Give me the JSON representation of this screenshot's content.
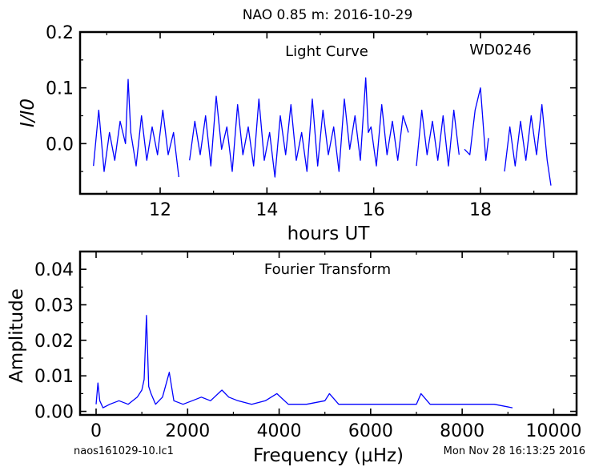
{
  "header": {
    "title": "NAO 0.85 m:  2016-10-29"
  },
  "footer": {
    "filename": "naos161029-10.lc1",
    "timestamp": "Mon Nov 28 16:13:25 2016"
  },
  "colors": {
    "series": "#0000ff",
    "axes": "#000000",
    "background": "#ffffff"
  },
  "chart_data": [
    {
      "type": "line",
      "annotation": "Light Curve",
      "object": "WD0246",
      "xlabel": "hours UT",
      "ylabel": "I/I0",
      "xlim": [
        10.5,
        19.8
      ],
      "ylim": [
        -0.09,
        0.2
      ],
      "xticks": [
        12,
        14,
        16,
        18
      ],
      "yticks": [
        0.0,
        0.1,
        0.2
      ],
      "xtick_labels": [
        "12",
        "14",
        "16",
        "18"
      ],
      "ytick_labels": [
        "0.0",
        "0.1",
        "0.2"
      ],
      "grid": false,
      "gaps_hours": [
        [
          12.35,
          12.55
        ],
        [
          16.7,
          16.8
        ],
        [
          17.6,
          17.65
        ],
        [
          18.05,
          18.15
        ],
        [
          18.2,
          18.4
        ]
      ],
      "series": [
        {
          "x": [
            10.75,
            10.85,
            10.95,
            11.05,
            11.15,
            11.25,
            11.35,
            11.4,
            11.45,
            11.55,
            11.65,
            11.75,
            11.85,
            11.95,
            12.05,
            12.15,
            12.25,
            12.35,
            12.55,
            12.65,
            12.75,
            12.85,
            12.95,
            13.05,
            13.15,
            13.25,
            13.35,
            13.45,
            13.55,
            13.65,
            13.75,
            13.85,
            13.95,
            14.05,
            14.15,
            14.25,
            14.35,
            14.45,
            14.55,
            14.65,
            14.75,
            14.85,
            14.95,
            15.05,
            15.15,
            15.25,
            15.35,
            15.45,
            15.55,
            15.65,
            15.75,
            15.85,
            15.9,
            15.95,
            16.05,
            16.15,
            16.25,
            16.35,
            16.45,
            16.55,
            16.65,
            16.8,
            16.9,
            17.0,
            17.1,
            17.2,
            17.3,
            17.4,
            17.5,
            17.6,
            17.7,
            17.8,
            17.9,
            18.0,
            18.1,
            18.15,
            18.45,
            18.55,
            18.65,
            18.75,
            18.85,
            18.95,
            19.05,
            19.15,
            19.25,
            19.32
          ],
          "y": [
            -0.04,
            0.06,
            -0.05,
            0.02,
            -0.03,
            0.04,
            0.0,
            0.115,
            0.02,
            -0.04,
            0.05,
            -0.03,
            0.03,
            -0.02,
            0.06,
            -0.02,
            0.02,
            -0.06,
            -0.03,
            0.04,
            -0.02,
            0.05,
            -0.04,
            0.085,
            -0.01,
            0.03,
            -0.05,
            0.07,
            -0.02,
            0.03,
            -0.04,
            0.08,
            -0.03,
            0.02,
            -0.06,
            0.05,
            -0.02,
            0.07,
            -0.03,
            0.02,
            -0.05,
            0.08,
            -0.04,
            0.06,
            -0.02,
            0.03,
            -0.05,
            0.08,
            -0.01,
            0.05,
            -0.03,
            0.118,
            0.02,
            0.03,
            -0.04,
            0.07,
            -0.02,
            0.04,
            -0.03,
            0.05,
            0.02,
            -0.04,
            0.06,
            -0.02,
            0.04,
            -0.03,
            0.05,
            -0.04,
            0.06,
            -0.02,
            -0.01,
            -0.02,
            0.06,
            0.1,
            -0.03,
            0.01,
            -0.05,
            0.03,
            -0.04,
            0.04,
            -0.03,
            0.05,
            -0.02,
            0.07,
            -0.03,
            -0.075
          ]
        }
      ]
    },
    {
      "type": "line",
      "annotation": "Fourier Transform",
      "xlabel": "Frequency (μHz)",
      "ylabel": "Amplitude",
      "xlim": [
        -350,
        10500
      ],
      "ylim": [
        -0.001,
        0.045
      ],
      "xticks": [
        0,
        2000,
        4000,
        6000,
        8000,
        10000
      ],
      "yticks": [
        0.0,
        0.01,
        0.02,
        0.03,
        0.04
      ],
      "xtick_labels": [
        "0",
        "2000",
        "4000",
        "6000",
        "8000",
        "10000"
      ],
      "ytick_labels": [
        "0.00",
        "0.01",
        "0.02",
        "0.03",
        "0.04"
      ],
      "grid": false,
      "series": [
        {
          "x": [
            0,
            40,
            80,
            150,
            300,
            500,
            700,
            900,
            1000,
            1050,
            1100,
            1150,
            1200,
            1300,
            1450,
            1600,
            1700,
            1900,
            2100,
            2300,
            2500,
            2750,
            2900,
            3100,
            3400,
            3700,
            3950,
            4200,
            4600,
            5000,
            5100,
            5300,
            5700,
            6200,
            6600,
            7000,
            7100,
            7300,
            7800,
            8300,
            8700,
            9100
          ],
          "y": [
            0.002,
            0.008,
            0.003,
            0.001,
            0.002,
            0.003,
            0.002,
            0.004,
            0.006,
            0.009,
            0.027,
            0.007,
            0.005,
            0.002,
            0.004,
            0.011,
            0.003,
            0.002,
            0.003,
            0.004,
            0.003,
            0.006,
            0.004,
            0.003,
            0.002,
            0.003,
            0.005,
            0.002,
            0.002,
            0.003,
            0.005,
            0.002,
            0.002,
            0.002,
            0.002,
            0.002,
            0.005,
            0.002,
            0.002,
            0.002,
            0.002,
            0.001
          ]
        }
      ]
    }
  ]
}
